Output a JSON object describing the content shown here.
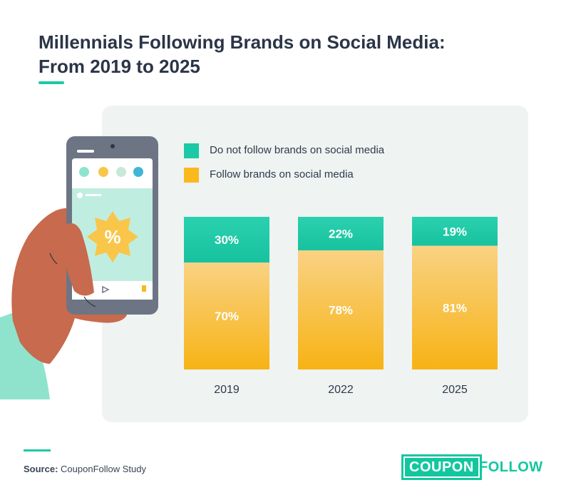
{
  "title": {
    "line1": "Millennials Following Brands on Social Media:",
    "line2": "From 2019 to 2025"
  },
  "colors": {
    "not_follow": "#1cc9a6",
    "follow": "#f9b91f",
    "accent": "#1fc8a5"
  },
  "chart_data": {
    "type": "bar",
    "stacked": true,
    "title": "Millennials Following Brands on Social Media: From 2019 to 2025",
    "categories": [
      "2019",
      "2022",
      "2025"
    ],
    "series": [
      {
        "name": "Do not follow brands on social media",
        "values": [
          30,
          22,
          19
        ],
        "labels": [
          "30%",
          "22%",
          "19%"
        ],
        "color": "#1cc9a6"
      },
      {
        "name": "Follow brands on social media",
        "values": [
          70,
          78,
          81
        ],
        "labels": [
          "70%",
          "78%",
          "81%"
        ],
        "color": "#f9b91f"
      }
    ],
    "ylim": [
      0,
      100
    ],
    "xlabel": "",
    "ylabel": "",
    "legend_position": "top-left"
  },
  "source": {
    "label": "Source:",
    "text": "CouponFollow Study"
  },
  "logo": {
    "coupon": "COUPON",
    "follow": "FOLLOW"
  }
}
